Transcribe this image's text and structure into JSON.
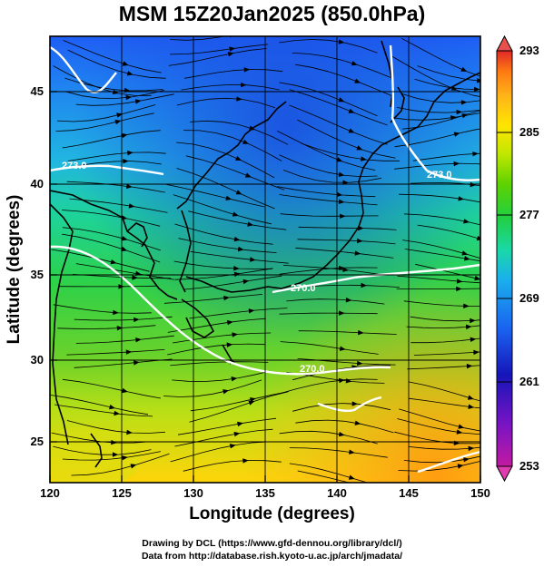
{
  "title": "MSM 15Z20Jan2025 (850.0hPa)",
  "axes": {
    "xlabel": "Longitude (degrees)",
    "ylabel": "Latitude (degrees)",
    "xticks": [
      "120",
      "125",
      "130",
      "135",
      "140",
      "145",
      "150"
    ],
    "yticks": [
      "25",
      "30",
      "35",
      "40",
      "45"
    ]
  },
  "colorbar": {
    "ticks": [
      "293",
      "285",
      "277",
      "269",
      "261",
      "253"
    ],
    "colors": [
      "#e02828",
      "#ff7a12",
      "#ffb518",
      "#ffe500",
      "#bfe600",
      "#5fd200",
      "#22cf40",
      "#1ad8a8",
      "#1ab0ec",
      "#1a62f0",
      "#1515b8",
      "#7a14c4",
      "#c21aa0"
    ]
  },
  "contour_labels": [
    "273.0",
    "273.0",
    "270.0",
    "270.0"
  ],
  "credits": {
    "line1": "Drawing by DCL (https://www.gfd-dennou.org/library/dcl/)",
    "line2": "Data from http://database.rish.kyoto-u.ac.jp/arch/jmadata/"
  },
  "map": {
    "lon_range": [
      120,
      150
    ],
    "lat_range": [
      22.5,
      47.5
    ],
    "field": "temperature (K) with wind streamlines"
  }
}
